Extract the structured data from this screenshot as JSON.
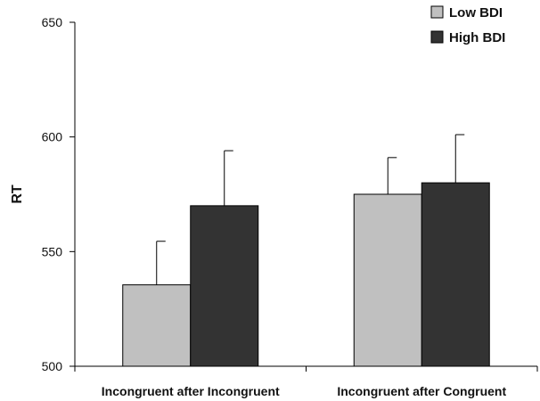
{
  "chart_data": {
    "type": "bar",
    "title": "",
    "xlabel": "",
    "ylabel": "RT",
    "ylim": [
      500,
      650
    ],
    "yticks": [
      500,
      550,
      600,
      650
    ],
    "categories": [
      "Incongruent after Incongruent",
      "Incongruent after Congruent"
    ],
    "series": [
      {
        "name": "Low BDI",
        "color": "#c0c0c0",
        "values": [
          535.5,
          575
        ],
        "error_upper": [
          19,
          16
        ]
      },
      {
        "name": "High BDI",
        "color": "#333333",
        "values": [
          570,
          580
        ],
        "error_upper": [
          24,
          21
        ]
      }
    ],
    "grid": false,
    "legend_position": "top-right",
    "error_bars": "upper"
  }
}
